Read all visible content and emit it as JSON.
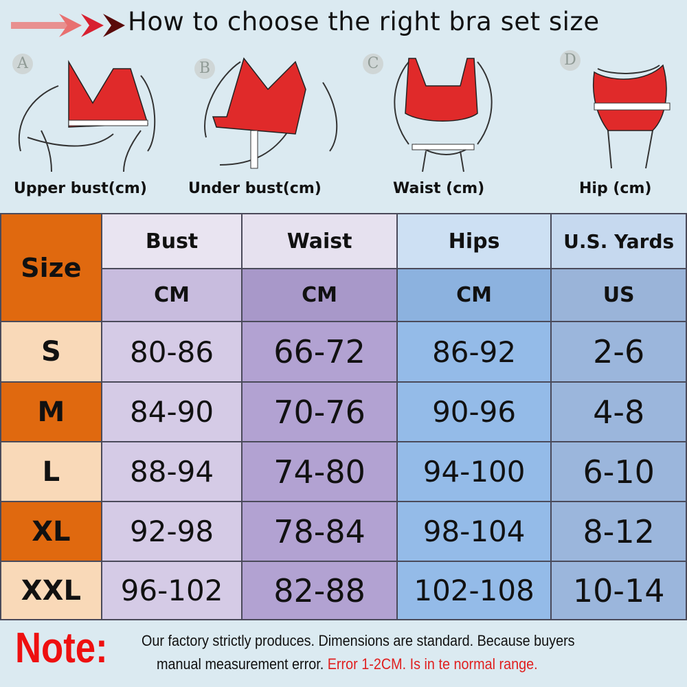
{
  "title": "How to choose the right bra set size",
  "figures": [
    {
      "badge": "A",
      "caption": "Upper bust(cm)"
    },
    {
      "badge": "B",
      "caption": "Under bust(cm)"
    },
    {
      "badge": "C",
      "caption": "Waist (cm)"
    },
    {
      "badge": "D",
      "caption": "Hip (cm)"
    }
  ],
  "table": {
    "size_header": "Size",
    "columns": [
      {
        "label": "Bust",
        "unit": "CM"
      },
      {
        "label": "Waist",
        "unit": "CM"
      },
      {
        "label": "Hips",
        "unit": "CM"
      },
      {
        "label": "U.S. Yards",
        "unit": "US"
      }
    ],
    "rows": [
      {
        "size": "S",
        "values": [
          "80-86",
          "66-72",
          "86-92",
          "2-6"
        ]
      },
      {
        "size": "M",
        "values": [
          "84-90",
          "70-76",
          "90-96",
          "4-8"
        ]
      },
      {
        "size": "L",
        "values": [
          "88-94",
          "74-80",
          "94-100",
          "6-10"
        ]
      },
      {
        "size": "XL",
        "values": [
          "92-98",
          "78-84",
          "98-104",
          "8-12"
        ]
      },
      {
        "size": "XXL",
        "values": [
          "96-102",
          "82-88",
          "102-108",
          "10-14"
        ]
      }
    ]
  },
  "note": {
    "label": "Note:",
    "line1": "Our factory strictly produces.  Dimensions are standard.  Because buyers",
    "line2": "manual measurement error.",
    "line2_red": "Error 1-2CM.  Is in te normal range."
  },
  "colors": {
    "accent_red": "#ee1010",
    "bra_red": "#e02a2a",
    "size_orange": "#e0690f",
    "size_light": "#f9d9b8"
  }
}
